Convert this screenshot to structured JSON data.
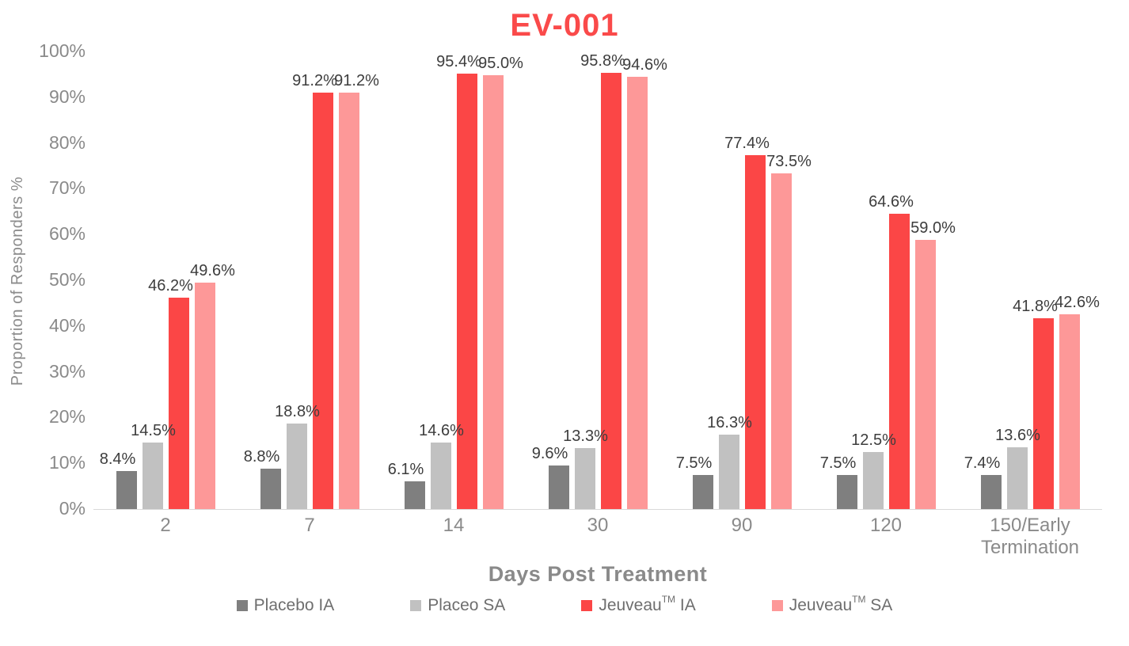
{
  "title": "EV-001",
  "axes": {
    "y_title": "Proportion of Responders %",
    "x_title": "Days Post Treatment",
    "y_ticks_bottom_up": [
      "0%",
      "10%",
      "20%",
      "30%",
      "40%",
      "50%",
      "60%",
      "70%",
      "80%",
      "90%",
      "100%"
    ]
  },
  "chart_data": {
    "type": "bar",
    "title": "EV-001",
    "xlabel": "Days Post Treatment",
    "ylabel": "Proportion of Responders %",
    "ylim": [
      0,
      100
    ],
    "grid": false,
    "legend_position": "bottom",
    "data_label_format": "one-decimal-percent",
    "categories": [
      "2",
      "7",
      "14",
      "30",
      "90",
      "120",
      "150/Early Termination"
    ],
    "series": [
      {
        "name": "Placebo IA",
        "color": "#7F7F7F",
        "values": [
          8.4,
          8.8,
          6.1,
          9.6,
          7.5,
          7.5,
          7.4
        ]
      },
      {
        "name": "Placeo SA",
        "color": "#C1C1C1",
        "values": [
          14.5,
          18.8,
          14.6,
          13.3,
          16.3,
          12.5,
          13.6
        ]
      },
      {
        "name": "Jeuveau TM IA",
        "color": "#FB4646",
        "values": [
          46.2,
          91.2,
          95.4,
          95.8,
          77.4,
          64.6,
          41.8
        ]
      },
      {
        "name": "Jeuveau TM SA",
        "color": "#FD9898",
        "values": [
          49.6,
          91.2,
          95.0,
          94.6,
          73.5,
          59.0,
          42.6
        ]
      }
    ]
  },
  "legend": {
    "items": [
      {
        "pre": "Placebo IA",
        "sup": "",
        "post": "",
        "color": "#7F7F7F"
      },
      {
        "pre": "Placeo SA",
        "sup": "",
        "post": "",
        "color": "#C1C1C1"
      },
      {
        "pre": "Jeuveau",
        "sup": "TM",
        "post": " IA",
        "color": "#FB4646"
      },
      {
        "pre": "Jeuveau",
        "sup": "TM",
        "post": " SA",
        "color": "#FD9898"
      }
    ]
  },
  "colors": {
    "title": "#FA4A4A",
    "axis_line": "#D9D9D9",
    "tick_text": "#8a8a8a",
    "axis_title_text": "#8a8a8a",
    "data_label_text": "#3d3d3d",
    "legend_text": "#6e6e6e",
    "background": "#ffffff"
  }
}
